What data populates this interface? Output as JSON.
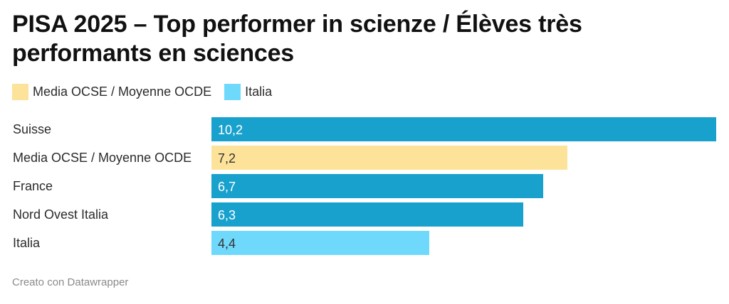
{
  "chart_data": {
    "type": "bar",
    "orientation": "horizontal",
    "title": "PISA 2025 – Top performer in scienze / Élèves très performants en sciences",
    "legend": [
      {
        "label": "Media OCSE / Moyenne OCDE",
        "color": "#fde39a"
      },
      {
        "label": "Italia",
        "color": "#6fd9fc"
      }
    ],
    "categories": [
      "Suisse",
      "Media OCSE / Moyenne OCDE",
      "France",
      "Nord Ovest Italia",
      "Italia"
    ],
    "values": [
      10.2,
      7.2,
      6.7,
      6.3,
      4.4
    ],
    "value_labels": [
      "10,2",
      "7,2",
      "6,7",
      "6,3",
      "4,4"
    ],
    "colors": [
      "#18a1cd",
      "#fde39a",
      "#18a1cd",
      "#18a1cd",
      "#6fd9fc"
    ],
    "value_text_colors": [
      "#ffffff",
      "#333333",
      "#ffffff",
      "#ffffff",
      "#333333"
    ],
    "xlim": [
      0,
      10.2
    ]
  },
  "footer": "Creato con Datawrapper"
}
